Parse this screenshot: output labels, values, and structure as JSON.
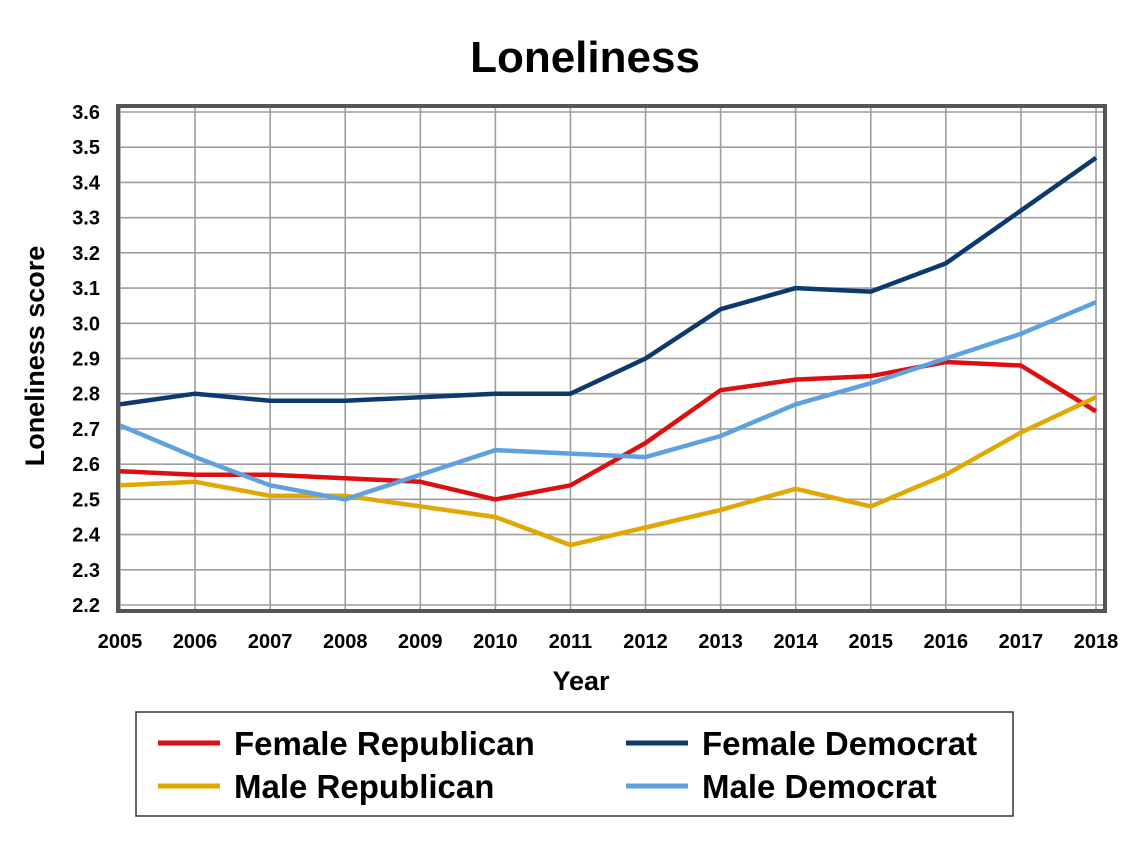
{
  "chart_data": {
    "type": "line",
    "title": "Loneliness",
    "xlabel": "Year",
    "ylabel": "Loneliness score",
    "x": [
      "2005",
      "2006",
      "2007",
      "2008",
      "2009",
      "2010",
      "2011",
      "2012",
      "2013",
      "2014",
      "2015",
      "2016",
      "2017",
      "2018"
    ],
    "ylim": [
      2.2,
      3.6
    ],
    "yticks": [
      "2.2",
      "2.3",
      "2.4",
      "2.5",
      "2.6",
      "2.7",
      "2.8",
      "2.9",
      "3.0",
      "3.1",
      "3.2",
      "3.3",
      "3.4",
      "3.5",
      "3.6"
    ],
    "grid": true,
    "legend_position": "bottom",
    "series": [
      {
        "name": "Female Republican",
        "color": "#dc1010",
        "values": [
          2.58,
          2.57,
          2.57,
          2.56,
          2.55,
          2.5,
          2.54,
          2.66,
          2.81,
          2.84,
          2.85,
          2.89,
          2.88,
          2.75
        ]
      },
      {
        "name": "Female Democrat",
        "color": "#0d3a6e",
        "values": [
          2.77,
          2.8,
          2.78,
          2.78,
          2.79,
          2.8,
          2.8,
          2.9,
          3.04,
          3.1,
          3.09,
          3.17,
          3.32,
          3.47
        ]
      },
      {
        "name": "Male Republican",
        "color": "#e0a800",
        "values": [
          2.54,
          2.55,
          2.51,
          2.51,
          2.48,
          2.45,
          2.37,
          2.42,
          2.47,
          2.53,
          2.48,
          2.57,
          2.69,
          2.79
        ]
      },
      {
        "name": "Male Democrat",
        "color": "#5fa0e0",
        "values": [
          2.71,
          2.62,
          2.54,
          2.5,
          2.57,
          2.64,
          2.63,
          2.62,
          2.68,
          2.77,
          2.83,
          2.9,
          2.97,
          3.06
        ]
      }
    ]
  }
}
